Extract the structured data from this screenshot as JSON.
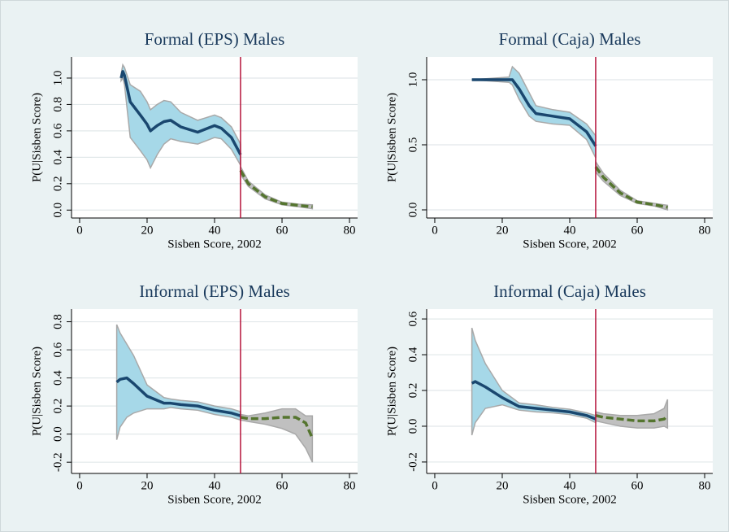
{
  "chart_data": [
    {
      "type": "line",
      "title": "Formal (EPS) Males",
      "x_label": "Sisben Score, 2002",
      "y_label": "P(U|Sisben Score)",
      "xlim": [
        -2.4,
        82.4
      ],
      "xticks": [
        0,
        20,
        40,
        60,
        80
      ],
      "ylim": [
        -0.06,
        1.16
      ],
      "yticks": [
        {
          "value": 0,
          "label": "0.0"
        },
        0.2,
        0.4,
        0.6,
        0.8,
        {
          "value": 1,
          "label": "1.0"
        }
      ],
      "grid": true,
      "cutoff": 47.7,
      "cutoff_color": "#b5123a",
      "series": [
        {
          "color": "#1a476f",
          "band_color": "#a6d8e8",
          "line_style": "solid",
          "x": [
            12.3,
            12.8,
            13.3,
            15,
            18,
            20,
            21,
            23,
            25,
            27,
            30,
            35,
            40,
            42,
            45,
            47.7
          ],
          "values": [
            1.0,
            1.05,
            1.02,
            0.82,
            0.72,
            0.65,
            0.6,
            0.64,
            0.67,
            0.68,
            0.63,
            0.59,
            0.64,
            0.62,
            0.55,
            0.42
          ],
          "lower": [
            0.98,
            1.0,
            0.95,
            0.55,
            0.45,
            0.38,
            0.32,
            0.42,
            0.5,
            0.54,
            0.52,
            0.5,
            0.55,
            0.54,
            0.46,
            0.34
          ],
          "upper": [
            1.03,
            1.1,
            1.08,
            0.95,
            0.9,
            0.82,
            0.76,
            0.8,
            0.83,
            0.82,
            0.74,
            0.68,
            0.72,
            0.7,
            0.63,
            0.5
          ]
        },
        {
          "color": "#55752f",
          "band_color": "#c0c0c0",
          "line_style": "dashed",
          "x": [
            47.7,
            50,
            55,
            60,
            65,
            69
          ],
          "values": [
            0.3,
            0.2,
            0.1,
            0.05,
            0.035,
            0.025
          ],
          "lower": [
            0.27,
            0.18,
            0.085,
            0.04,
            0.025,
            0.01
          ],
          "upper": [
            0.33,
            0.22,
            0.115,
            0.06,
            0.045,
            0.04
          ]
        }
      ]
    },
    {
      "type": "line",
      "title": "Formal (Caja) Males",
      "x_label": "Sisben Score, 2002",
      "y_label": "P(U|Sisben Score)",
      "xlim": [
        -2.4,
        82.4
      ],
      "xticks": [
        0,
        20,
        40,
        60,
        80
      ],
      "ylim": [
        -0.0625,
        1.175
      ],
      "yticks": [
        {
          "value": 0,
          "label": "0.0"
        },
        0.5,
        {
          "value": 1,
          "label": "1.0"
        }
      ],
      "grid": true,
      "cutoff": 47.7,
      "cutoff_color": "#b5123a",
      "series": [
        {
          "color": "#1a476f",
          "band_color": "#a6d8e8",
          "line_style": "solid",
          "x": [
            11,
            22,
            23,
            25,
            28,
            30,
            35,
            40,
            45,
            47.7
          ],
          "values": [
            1.0,
            1.0,
            1.0,
            0.93,
            0.8,
            0.74,
            0.72,
            0.7,
            0.6,
            0.49
          ],
          "lower": [
            1.0,
            0.98,
            0.96,
            0.85,
            0.72,
            0.68,
            0.66,
            0.65,
            0.54,
            0.4
          ],
          "upper": [
            1.0,
            1.02,
            1.1,
            1.05,
            0.9,
            0.8,
            0.77,
            0.75,
            0.66,
            0.57
          ]
        },
        {
          "color": "#55752f",
          "band_color": "#c0c0c0",
          "line_style": "dashed",
          "x": [
            47.7,
            50,
            55,
            60,
            65,
            69
          ],
          "values": [
            0.33,
            0.25,
            0.13,
            0.06,
            0.04,
            0.02
          ],
          "lower": [
            0.29,
            0.22,
            0.11,
            0.05,
            0.03,
            0.0
          ],
          "upper": [
            0.37,
            0.28,
            0.15,
            0.07,
            0.05,
            0.035
          ]
        }
      ]
    },
    {
      "type": "line",
      "title": "Informal (EPS) Males",
      "x_label": "Sisben Score, 2002",
      "y_label": "P(U|Sisben Score)",
      "xlim": [
        -2.4,
        82.4
      ],
      "xticks": [
        0,
        20,
        40,
        60,
        80
      ],
      "ylim": [
        -0.28,
        0.89
      ],
      "yticks": [
        -0.2,
        {
          "value": 0,
          "label": "0.0"
        },
        0.2,
        0.4,
        0.6,
        0.8
      ],
      "grid": true,
      "cutoff": 47.7,
      "cutoff_color": "#b5123a",
      "series": [
        {
          "color": "#1a476f",
          "band_color": "#a6d8e8",
          "line_style": "solid",
          "x": [
            11,
            12,
            14,
            16,
            20,
            25,
            27,
            30,
            35,
            40,
            45,
            47.7
          ],
          "values": [
            0.37,
            0.39,
            0.4,
            0.36,
            0.27,
            0.22,
            0.22,
            0.21,
            0.2,
            0.17,
            0.15,
            0.13
          ],
          "lower": [
            -0.04,
            0.05,
            0.12,
            0.15,
            0.18,
            0.18,
            0.19,
            0.18,
            0.17,
            0.14,
            0.12,
            0.1
          ],
          "upper": [
            0.78,
            0.72,
            0.64,
            0.56,
            0.35,
            0.26,
            0.25,
            0.24,
            0.23,
            0.2,
            0.18,
            0.16
          ]
        },
        {
          "color": "#55752f",
          "band_color": "#c0c0c0",
          "line_style": "dashed",
          "x": [
            47.7,
            50,
            55,
            60,
            64,
            67,
            69
          ],
          "values": [
            0.12,
            0.11,
            0.11,
            0.12,
            0.12,
            0.08,
            -0.03
          ],
          "lower": [
            0.1,
            0.09,
            0.07,
            0.04,
            0.0,
            -0.1,
            -0.2
          ],
          "upper": [
            0.14,
            0.13,
            0.15,
            0.18,
            0.18,
            0.13,
            0.13
          ]
        }
      ]
    },
    {
      "type": "line",
      "title": "Informal (Caja) Males",
      "x_label": "Sisben Score, 2002",
      "y_label": "P(U|Sisben Score)",
      "xlim": [
        -2.4,
        82.4
      ],
      "xticks": [
        0,
        20,
        40,
        60,
        80
      ],
      "ylim": [
        -0.264,
        0.655
      ],
      "yticks": [
        -0.2,
        {
          "value": 0,
          "label": "0.0"
        },
        0.2,
        0.4,
        0.6
      ],
      "grid": true,
      "cutoff": 47.7,
      "cutoff_color": "#b5123a",
      "series": [
        {
          "color": "#1a476f",
          "band_color": "#a6d8e8",
          "line_style": "solid",
          "x": [
            11,
            12,
            15,
            20,
            25,
            30,
            35,
            40,
            45,
            47.7
          ],
          "values": [
            0.24,
            0.25,
            0.22,
            0.16,
            0.11,
            0.1,
            0.09,
            0.08,
            0.06,
            0.04
          ],
          "lower": [
            -0.05,
            0.02,
            0.1,
            0.12,
            0.09,
            0.08,
            0.075,
            0.065,
            0.045,
            0.02
          ],
          "upper": [
            0.55,
            0.48,
            0.35,
            0.2,
            0.13,
            0.12,
            0.105,
            0.095,
            0.075,
            0.06
          ]
        },
        {
          "color": "#55752f",
          "band_color": "#c0c0c0",
          "line_style": "dashed",
          "x": [
            47.7,
            50,
            55,
            60,
            65,
            68,
            69
          ],
          "values": [
            0.06,
            0.05,
            0.04,
            0.03,
            0.03,
            0.04,
            0.06
          ],
          "lower": [
            0.03,
            0.02,
            0.0,
            -0.01,
            -0.01,
            0.0,
            -0.01
          ],
          "upper": [
            0.08,
            0.07,
            0.06,
            0.06,
            0.07,
            0.1,
            0.15
          ]
        }
      ]
    }
  ]
}
